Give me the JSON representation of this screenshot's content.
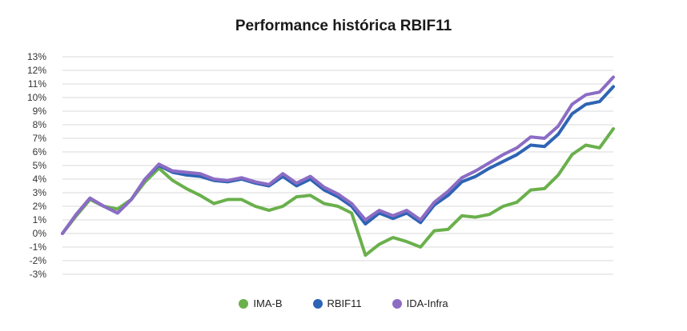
{
  "chart_data": {
    "type": "line",
    "title": "Performance histórica RBIF11",
    "xlabel": "",
    "ylabel": "",
    "ylim": [
      -3,
      13
    ],
    "yticks": [
      -3,
      -2,
      -1,
      0,
      1,
      2,
      3,
      4,
      5,
      6,
      7,
      8,
      9,
      10,
      11,
      12,
      13
    ],
    "ytick_labels": [
      "-3%",
      "-2%",
      "-1%",
      "0%",
      "1%",
      "2%",
      "3%",
      "4%",
      "5%",
      "6%",
      "7%",
      "8%",
      "9%",
      "10%",
      "11%",
      "12%",
      "13%"
    ],
    "grid": "horizontal",
    "legend_position": "bottom",
    "x": [
      0,
      1,
      2,
      3,
      4,
      5,
      6,
      7,
      8,
      9,
      10,
      11,
      12,
      13,
      14,
      15,
      16,
      17,
      18,
      19,
      20,
      21,
      22,
      23,
      24,
      25,
      26,
      27,
      28,
      29,
      30,
      31,
      32,
      33,
      34,
      35,
      36,
      37,
      38,
      39,
      40
    ],
    "series": [
      {
        "name": "IMA-B",
        "color": "#6ab04c",
        "values": [
          0.0,
          1.3,
          2.5,
          2.0,
          1.8,
          2.5,
          3.8,
          4.8,
          3.9,
          3.3,
          2.8,
          2.2,
          2.5,
          2.5,
          2.0,
          1.7,
          2.0,
          2.7,
          2.8,
          2.2,
          2.0,
          1.5,
          -1.6,
          -0.8,
          -0.3,
          -0.6,
          -1.0,
          0.2,
          0.3,
          1.3,
          1.2,
          1.4,
          2.0,
          2.3,
          3.2,
          3.3,
          4.3,
          5.8,
          6.5,
          6.3,
          7.7
        ]
      },
      {
        "name": "RBIF11",
        "color": "#2e64b4",
        "values": [
          0.0,
          1.4,
          2.6,
          2.0,
          1.5,
          2.5,
          4.0,
          5.0,
          4.5,
          4.3,
          4.2,
          3.9,
          3.8,
          4.0,
          3.7,
          3.5,
          4.2,
          3.5,
          4.0,
          3.2,
          2.7,
          2.0,
          0.7,
          1.5,
          1.1,
          1.5,
          0.8,
          2.1,
          2.8,
          3.8,
          4.2,
          4.8,
          5.3,
          5.8,
          6.5,
          6.4,
          7.3,
          8.8,
          9.5,
          9.7,
          10.8
        ]
      },
      {
        "name": "IDA-Infra",
        "color": "#8c6cc4",
        "values": [
          0.0,
          1.4,
          2.6,
          2.0,
          1.5,
          2.5,
          4.0,
          5.1,
          4.6,
          4.5,
          4.4,
          4.0,
          3.9,
          4.1,
          3.8,
          3.6,
          4.4,
          3.7,
          4.2,
          3.4,
          2.9,
          2.2,
          1.0,
          1.7,
          1.3,
          1.7,
          1.0,
          2.3,
          3.1,
          4.1,
          4.6,
          5.2,
          5.8,
          6.3,
          7.1,
          7.0,
          7.9,
          9.5,
          10.2,
          10.4,
          11.5
        ]
      }
    ]
  }
}
